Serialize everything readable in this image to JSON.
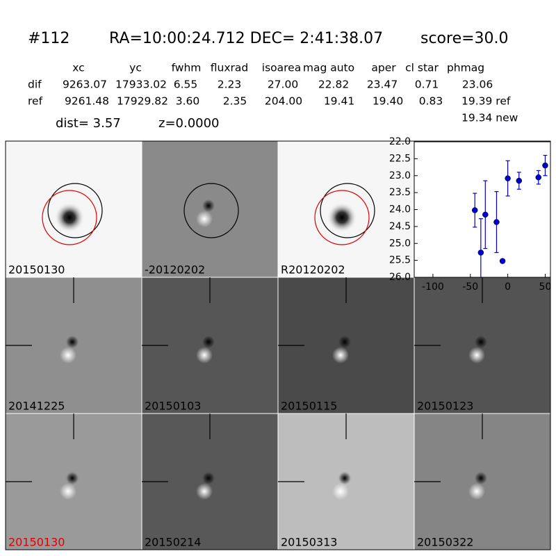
{
  "header": {
    "id": "#112",
    "coords": "RA=10:00:24.712 DEC= 2:41:38.07",
    "score": "score=30.0"
  },
  "table": {
    "columns": [
      "xc",
      "yc",
      "fwhm",
      "fluxrad",
      "isoarea",
      "mag auto",
      "aper",
      "cl star",
      "phmag"
    ],
    "rows": [
      [
        "dif",
        "9263.07",
        "17933.02",
        "6.55",
        "2.23",
        "27.00",
        "22.82",
        "23.47",
        "0.71",
        "23.06"
      ],
      [
        "ref",
        "9261.48",
        "17929.82",
        "3.60",
        "2.35",
        "204.00",
        "19.41",
        "19.40",
        "0.83",
        "19.39 ref"
      ]
    ],
    "extra": "19.34 new"
  },
  "dist": "dist=  3.57",
  "z": "z=0.0000",
  "tiles": [
    {
      "label": "20150130"
    },
    {
      "label": "-20120202"
    },
    {
      "label": "R20120202"
    },
    {
      "label": "20141225"
    },
    {
      "label": "20150103"
    },
    {
      "label": "20150115"
    },
    {
      "label": "20150123"
    },
    {
      "label": "20150130"
    },
    {
      "label": "20150214"
    },
    {
      "label": "20150313"
    },
    {
      "label": "20150322"
    }
  ],
  "chart_data": {
    "type": "scatter",
    "color": "#0000cc",
    "x": [
      -44,
      -36,
      -30,
      -15,
      -7,
      0,
      15,
      41,
      50
    ],
    "values": [
      24.02,
      25.27,
      24.15,
      24.37,
      25.52,
      23.08,
      23.15,
      23.05,
      22.7
    ],
    "errors": [
      0.5,
      1.0,
      1.0,
      0.9,
      0.05,
      0.52,
      0.25,
      0.2,
      0.3
    ],
    "xlim": [
      -125,
      57
    ],
    "ylim": [
      22,
      26
    ],
    "y_inverted": true,
    "xticks": [
      -100,
      -50,
      0,
      50
    ],
    "yticks": [
      {
        "value": 22,
        "label": "22.0"
      },
      {
        "value": 22.5,
        "label": "22.5"
      },
      {
        "value": 23,
        "label": "23.0"
      },
      {
        "value": 23.5,
        "label": "23.5"
      },
      {
        "value": 24,
        "label": "24.0"
      },
      {
        "value": 24.5,
        "label": "24.5"
      },
      {
        "value": 25,
        "label": "25.0"
      },
      {
        "value": 25.5,
        "label": "25.5"
      },
      {
        "value": 26,
        "label": "26.0"
      }
    ]
  }
}
